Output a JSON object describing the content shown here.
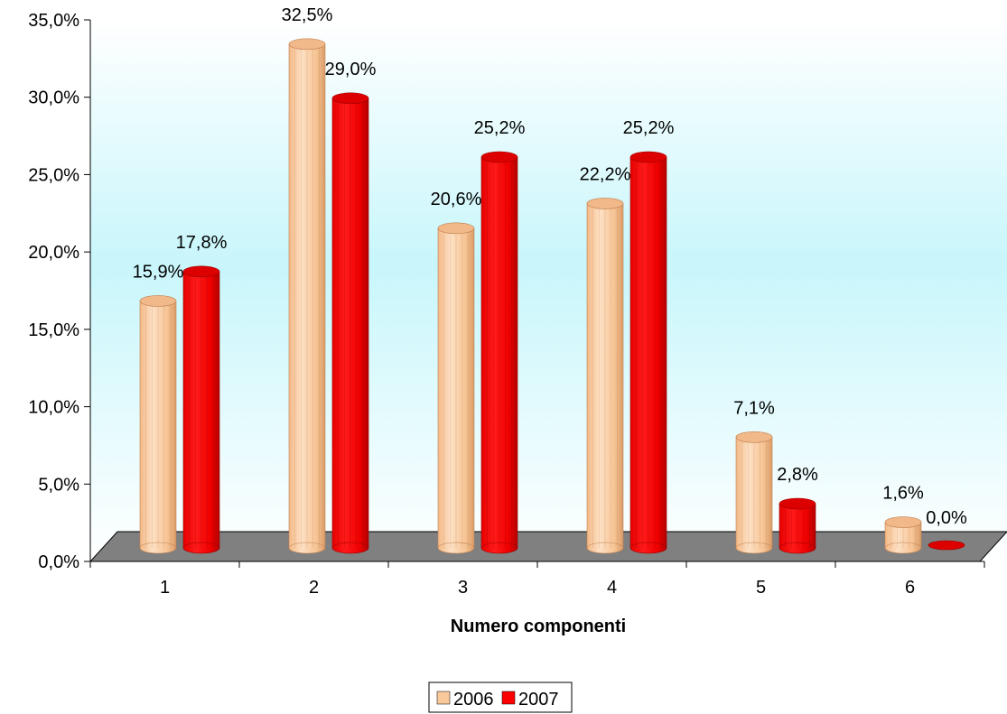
{
  "chart_data": {
    "type": "bar",
    "categories": [
      "1",
      "2",
      "3",
      "4",
      "5",
      "6"
    ],
    "series": [
      {
        "name": "2006",
        "values": [
          15.9,
          32.5,
          20.6,
          22.2,
          7.1,
          1.6
        ],
        "labels": [
          "15,9%",
          "32,5%",
          "20,6%",
          "22,2%",
          "7,1%",
          "1,6%"
        ],
        "color": "#f9c89b"
      },
      {
        "name": "2007",
        "values": [
          17.8,
          29.0,
          25.2,
          25.2,
          2.8,
          0.0
        ],
        "labels": [
          "17,8%",
          "29,0%",
          "25,2%",
          "25,2%",
          "2,8%",
          "0,0%"
        ],
        "color": "#ff0000"
      }
    ],
    "ylim": [
      0,
      35
    ],
    "yticks": [
      0,
      5,
      10,
      15,
      20,
      25,
      30,
      35
    ],
    "ytick_labels": [
      "0,0%",
      "5,0%",
      "10,0%",
      "15,0%",
      "20,0%",
      "25,0%",
      "30,0%",
      "35,0%"
    ],
    "xlabel": "Numero componenti",
    "ylabel": "",
    "legend_position": "bottom",
    "grid": false,
    "style": "3d-cylinder"
  }
}
